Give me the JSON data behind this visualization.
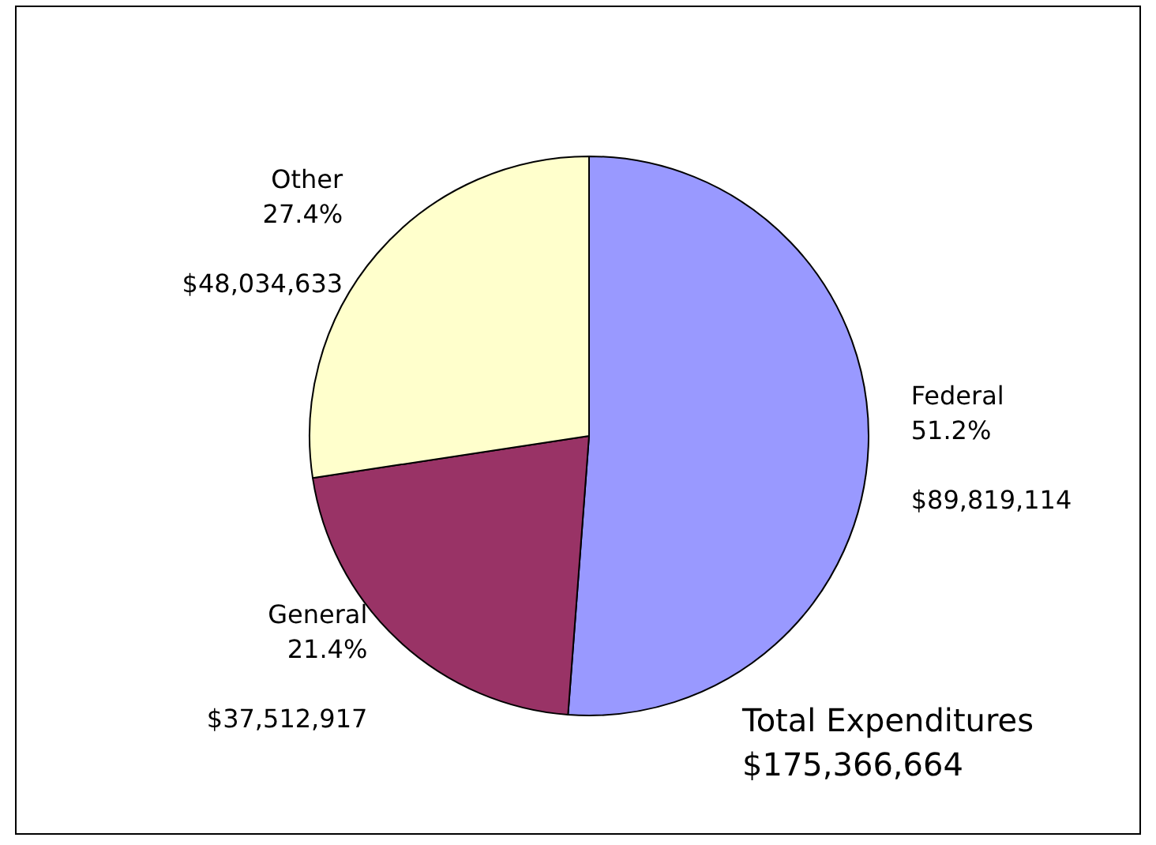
{
  "chart_data": {
    "type": "pie",
    "categories": [
      "Federal",
      "General",
      "Other"
    ],
    "values": [
      51.2,
      21.4,
      27.4
    ],
    "colors": [
      "#9999ff",
      "#993366",
      "#ffffcc"
    ],
    "value_labels": [
      "51.2%",
      "21.4%",
      "27.4%"
    ],
    "annotations": [
      {
        "text": "$89,819,114",
        "x": "Federal"
      },
      {
        "text": "$37,512,917",
        "x": "General"
      },
      {
        "text": "$48,034,633",
        "x": "Other"
      },
      "Total Expenditures\n$175,366,664"
    ],
    "legend": false
  }
}
